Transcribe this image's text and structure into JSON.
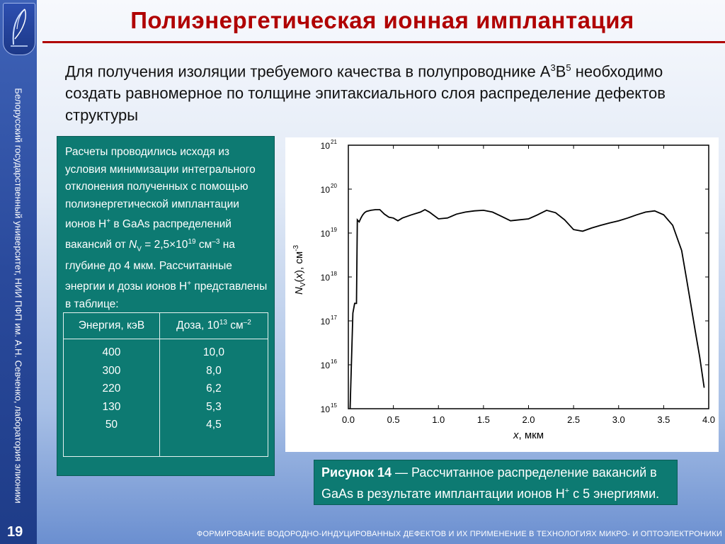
{
  "sidebar": {
    "vertical_text": "Белорусский государственный университет, НИИ ПФП им. А.Н. Севченко, лаборатория элионики",
    "page_number": "19"
  },
  "title": "Полиэнергетическая ионная имплантация",
  "intro": {
    "part1": "Для получения изоляции требуемого качества в полупроводнике A",
    "sup1": "3",
    "part2": "B",
    "sup2": "5",
    "part3": " необходимо создать равномерное по толщине эпитаксиального слоя распределение дефектов структуры"
  },
  "info_box": {
    "t1": "Расчеты проводились исходя из условия минимизации интегрального отклонения полученных с помощью полиэнергетической имплантации ионов H",
    "t1_sup": "+",
    "t2": " в GaAs распределений вакансий от ",
    "nv": "N",
    "nv_sub": "V",
    "t3": " = 2,5×10",
    "t3_sup": "19",
    "t4": " см",
    "t4_sup": "–3",
    "t5": " на глубине до 4 мкм. Рассчитанные энергии и дозы ионов H",
    "t5_sup": "+",
    "t6": " представлены в таблице:",
    "table": {
      "header_energy": "Энергия, кэВ",
      "header_dose_prefix": "Доза, 10",
      "header_dose_sup1": "13",
      "header_dose_mid": " см",
      "header_dose_sup2": "–2",
      "energies": [
        "400",
        "300",
        "220",
        "130",
        "50"
      ],
      "doses": [
        "10,0",
        "8,0",
        "6,2",
        "5,3",
        "4,5"
      ]
    }
  },
  "caption": {
    "bold": "Рисунок 14",
    "text1": " — Рассчитанное распределение вакансий в GaAs в результате имплантации ионов H",
    "sup": "+",
    "text2": " с  5 энергиями."
  },
  "footer": "ФОРМИРОВАНИЕ ВОДОРОДНО-ИНДУЦИРОВАННЫХ ДЕФЕКТОВ И ИХ ПРИМЕНЕНИЕ В ТЕХНОЛОГИЯХ МИКРО- И ОПТОЭЛЕКТРОНИКИ",
  "chart_data": {
    "type": "line",
    "xlabel": "x, мкм",
    "ylabel": "NV(x), см-3",
    "xlim": [
      0.0,
      4.0
    ],
    "ylim_log10": [
      15,
      21
    ],
    "y_scale": "log",
    "x_ticks": [
      "0.0",
      "0.5",
      "1.0",
      "1.5",
      "2.0",
      "2.5",
      "3.0",
      "3.5",
      "4.0"
    ],
    "y_ticks": [
      {
        "base": "10",
        "exp": "15"
      },
      {
        "base": "10",
        "exp": "16"
      },
      {
        "base": "10",
        "exp": "17"
      },
      {
        "base": "10",
        "exp": "18"
      },
      {
        "base": "10",
        "exp": "19"
      },
      {
        "base": "10",
        "exp": "20"
      },
      {
        "base": "10",
        "exp": "21"
      }
    ],
    "series": [
      {
        "color": "#000000",
        "x": [
          0.02,
          0.05,
          0.07,
          0.09,
          0.1,
          0.12,
          0.14,
          0.15,
          0.16,
          0.18,
          0.2,
          0.25,
          0.3,
          0.35,
          0.4,
          0.45,
          0.5,
          0.55,
          0.6,
          0.7,
          0.8,
          0.85,
          0.9,
          1.0,
          1.1,
          1.2,
          1.3,
          1.4,
          1.5,
          1.6,
          1.7,
          1.8,
          1.9,
          2.0,
          2.1,
          2.2,
          2.3,
          2.4,
          2.5,
          2.6,
          2.7,
          2.8,
          2.9,
          3.0,
          3.1,
          3.2,
          3.3,
          3.4,
          3.5,
          3.6,
          3.7,
          3.75,
          3.8,
          3.85,
          3.9,
          3.95
        ],
        "y": [
          1000000000000000.0,
          1.5e+17,
          2.5e+17,
          2.5e+17,
          2e+19,
          1.8e+19,
          2.2e+19,
          2.4e+19,
          2.6e+19,
          2.9e+19,
          3.1e+19,
          3.3e+19,
          3.4e+19,
          3.4e+19,
          2.7e+19,
          2.3e+19,
          2.2e+19,
          1.9e+19,
          2.2e+19,
          2.6e+19,
          3e+19,
          3.4e+19,
          3e+19,
          2.1e+19,
          2.2e+19,
          2.7e+19,
          3e+19,
          3.2e+19,
          3.3e+19,
          3e+19,
          2.4e+19,
          1.9e+19,
          2e+19,
          2.1e+19,
          2.6e+19,
          3.3e+19,
          2.9e+19,
          2e+19,
          1.2e+19,
          1.1e+19,
          1.3e+19,
          1.5e+19,
          1.7e+19,
          1.9e+19,
          2.2e+19,
          2.6e+19,
          3e+19,
          3.2e+19,
          2.6e+19,
          1.5e+19,
          4e+18,
          1e+18,
          2.5e+17,
          6e+16,
          1.5e+16,
          3000000000000000.0
        ]
      }
    ]
  }
}
